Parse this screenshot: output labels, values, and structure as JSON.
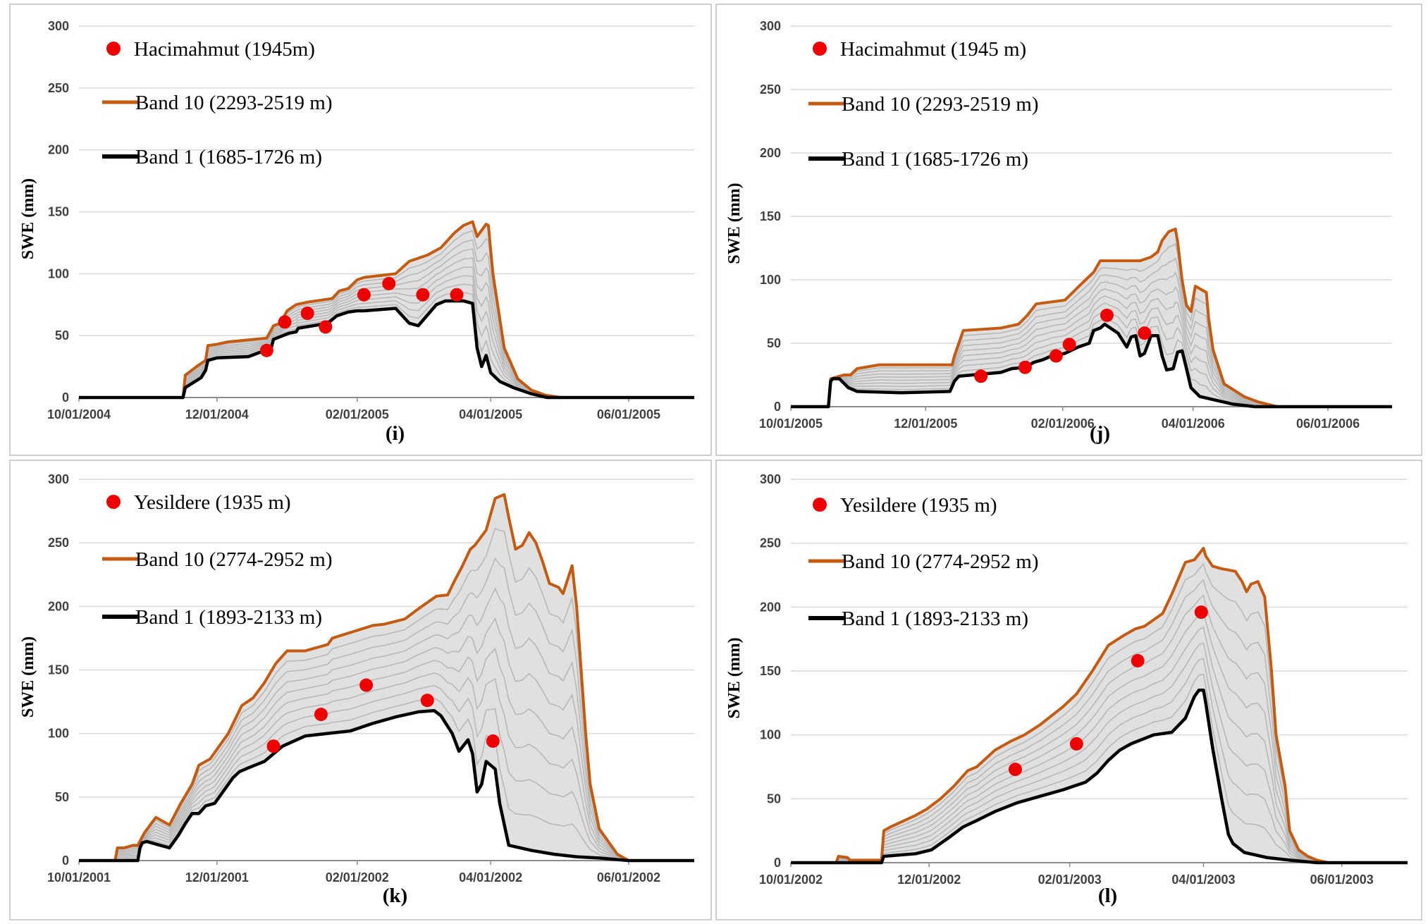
{
  "figure": {
    "ylabel": "SWE (mm)"
  },
  "colors": {
    "obs": "#ee0000",
    "band_high": "#c55a11",
    "band_low": "#000000",
    "fill": "#e0e0e0",
    "inner": "#b8b8b8",
    "grid": "#d9d9d9",
    "axis": "#8c8c8c"
  },
  "chart_data": [
    {
      "type": "area",
      "panel_label": "(i)",
      "ylabel": "SWE (mm)",
      "ylim": [
        0,
        300
      ],
      "yticks": [
        "0",
        "50",
        "100",
        "150",
        "200",
        "250",
        "300"
      ],
      "xlim_days": [
        0,
        272
      ],
      "xticks": [
        {
          "day": 0,
          "label": "10/01/2004"
        },
        {
          "day": 61,
          "label": "12/01/2004"
        },
        {
          "day": 123,
          "label": "02/01/2005"
        },
        {
          "day": 182,
          "label": "04/01/2005"
        },
        {
          "day": 243,
          "label": "06/01/2005"
        }
      ],
      "legend": [
        "Hacimahmut (1945m)",
        "Band 10 (2293-2519 m)",
        "Band 1 (1685-1726 m)"
      ],
      "observed": {
        "name": "Hacimahmut (1945m)",
        "x": [
          83,
          91,
          101,
          109,
          126,
          137,
          152,
          167
        ],
        "y": [
          38,
          61,
          68,
          57,
          83,
          92,
          83,
          83
        ]
      },
      "band10": {
        "name": "Band 10 (2293-2519 m)",
        "x": [
          0,
          46,
          47,
          52,
          56,
          57,
          61,
          66,
          83,
          86,
          89,
          92,
          96,
          101,
          112,
          115,
          119,
          123,
          126,
          140,
          146,
          154,
          160,
          166,
          170,
          174,
          176,
          180,
          181,
          183,
          188,
          194,
          200,
          206,
          213,
          272
        ],
        "y": [
          0,
          0,
          18,
          25,
          30,
          42,
          43,
          45,
          48,
          58,
          60,
          70,
          75,
          77,
          80,
          86,
          88,
          95,
          97,
          100,
          110,
          115,
          121,
          133,
          139,
          142,
          130,
          140,
          139,
          100,
          40,
          15,
          6,
          2,
          0,
          0
        ]
      },
      "band1": {
        "name": "Band 1 (1685-1726 m)",
        "x": [
          0,
          46,
          47,
          54,
          56,
          57,
          61,
          75,
          85,
          86,
          93,
          96,
          97,
          110,
          114,
          119,
          123,
          126,
          140,
          146,
          150,
          158,
          162,
          170,
          174,
          176,
          178,
          180,
          182,
          186,
          192,
          200,
          207,
          272
        ],
        "y": [
          0,
          0,
          8,
          16,
          22,
          30,
          32,
          33,
          40,
          47,
          52,
          53,
          56,
          60,
          66,
          69,
          70,
          70,
          72,
          60,
          58,
          75,
          78,
          78,
          76,
          40,
          25,
          34,
          20,
          13,
          8,
          3,
          0,
          0
        ]
      }
    },
    {
      "type": "area",
      "panel_label": "(j)",
      "ylabel": "SWE (mm)",
      "ylim": [
        0,
        300
      ],
      "yticks": [
        "0",
        "50",
        "100",
        "150",
        "200",
        "250",
        "300"
      ],
      "xlim_days": [
        0,
        272
      ],
      "xticks": [
        {
          "day": 0,
          "label": "10/01/2005"
        },
        {
          "day": 61,
          "label": "12/01/2005"
        },
        {
          "day": 123,
          "label": "02/01/2006"
        },
        {
          "day": 182,
          "label": "04/01/2006"
        },
        {
          "day": 243,
          "label": "06/01/2006"
        }
      ],
      "legend": [
        "Hacimahmut (1945 m)",
        "Band 10 (2293-2519 m)",
        "Band 1 (1685-1726 m)"
      ],
      "observed": {
        "name": "Hacimahmut (1945 m)",
        "x": [
          86,
          106,
          120,
          126,
          143,
          160
        ],
        "y": [
          24,
          31,
          40,
          49,
          72,
          58
        ]
      },
      "band10": {
        "name": "Band 10 (2293-2519 m)",
        "x": [
          0,
          17,
          18,
          24,
          27,
          30,
          40,
          50,
          73,
          74,
          76,
          78,
          95,
          103,
          107,
          111,
          124,
          131,
          137,
          140,
          158,
          163,
          166,
          168,
          171,
          174,
          175,
          177,
          179,
          181,
          183,
          188,
          189,
          191,
          196,
          205,
          211,
          220,
          272
        ],
        "y": [
          0,
          0,
          22,
          25,
          25,
          30,
          33,
          33,
          33,
          40,
          50,
          60,
          62,
          65,
          72,
          81,
          84,
          96,
          106,
          115,
          115,
          118,
          122,
          131,
          138,
          140,
          130,
          100,
          80,
          75,
          95,
          90,
          70,
          45,
          18,
          8,
          4,
          0,
          0
        ]
      },
      "band1": {
        "name": "Band 1 (1685-1726 m)",
        "x": [
          0,
          17,
          18,
          19,
          22,
          26,
          30,
          50,
          72,
          74,
          76,
          95,
          100,
          106,
          110,
          114,
          118,
          124,
          130,
          135,
          137,
          140,
          142,
          148,
          152,
          154,
          156,
          158,
          160,
          163,
          166,
          168,
          170,
          173,
          175,
          177,
          179,
          181,
          185,
          195,
          200,
          210,
          272
        ],
        "y": [
          0,
          0,
          20,
          22,
          22,
          15,
          12,
          11,
          12,
          20,
          24,
          27,
          30,
          31,
          35,
          37,
          40,
          42,
          47,
          50,
          60,
          62,
          65,
          58,
          47,
          55,
          56,
          40,
          42,
          56,
          56,
          40,
          29,
          30,
          43,
          44,
          30,
          15,
          8,
          4,
          2,
          0,
          0
        ]
      }
    },
    {
      "type": "area",
      "panel_label": "(k)",
      "ylabel": "SWE (mm)",
      "ylim": [
        0,
        300
      ],
      "yticks": [
        "0",
        "50",
        "100",
        "150",
        "200",
        "250",
        "300"
      ],
      "xlim_days": [
        0,
        272
      ],
      "xticks": [
        {
          "day": 0,
          "label": "10/01/2001"
        },
        {
          "day": 61,
          "label": "12/01/2001"
        },
        {
          "day": 123,
          "label": "02/01/2002"
        },
        {
          "day": 182,
          "label": "04/01/2002"
        },
        {
          "day": 243,
          "label": "06/01/2002"
        }
      ],
      "legend": [
        "Yesildere (1935 m)",
        "Band 10 (2774-2952 m)",
        "Band 1 (1893-2133 m)"
      ],
      "observed": {
        "name": "Yesildere (1935 m)",
        "x": [
          86,
          107,
          127,
          154,
          183
        ],
        "y": [
          90,
          115,
          138,
          126,
          94
        ]
      },
      "band10": {
        "name": "Band 10 (2774-2952 m)",
        "x": [
          0,
          16,
          17,
          20,
          24,
          26,
          29,
          34,
          38,
          40,
          45,
          50,
          53,
          58,
          66,
          72,
          77,
          82,
          87,
          92,
          100,
          110,
          112,
          130,
          135,
          144,
          150,
          158,
          163,
          166,
          169,
          173,
          175,
          180,
          184,
          188,
          190,
          193,
          196,
          199,
          202,
          205,
          208,
          212,
          214,
          218,
          220,
          222,
          224,
          226,
          230,
          238,
          243,
          272
        ],
        "y": [
          0,
          0,
          10,
          10,
          12,
          12,
          22,
          34,
          30,
          28,
          45,
          60,
          75,
          80,
          100,
          122,
          128,
          140,
          155,
          165,
          165,
          170,
          175,
          185,
          186,
          190,
          198,
          208,
          209,
          220,
          230,
          245,
          248,
          260,
          285,
          288,
          270,
          245,
          248,
          258,
          250,
          235,
          218,
          215,
          210,
          232,
          200,
          150,
          100,
          60,
          25,
          5,
          0,
          0
        ]
      },
      "band1": {
        "name": "Band 1 (1893-2133 m)",
        "x": [
          0,
          26,
          27,
          28,
          30,
          34,
          40,
          44,
          47,
          50,
          53,
          56,
          60,
          64,
          68,
          71,
          75,
          82,
          90,
          100,
          110,
          120,
          130,
          140,
          150,
          157,
          160,
          165,
          168,
          172,
          174,
          176,
          178,
          180,
          184,
          186,
          190,
          200,
          210,
          220,
          230,
          243,
          272
        ],
        "y": [
          0,
          0,
          10,
          14,
          15,
          13,
          10,
          20,
          29,
          37,
          37,
          43,
          45,
          55,
          65,
          70,
          73,
          78,
          90,
          98,
          100,
          102,
          108,
          113,
          117,
          118,
          114,
          100,
          86,
          95,
          84,
          54,
          60,
          78,
          72,
          45,
          12,
          8,
          5,
          3,
          2,
          0,
          0
        ]
      }
    },
    {
      "type": "area",
      "panel_label": "(l)",
      "ylabel": "SWE (mm)",
      "ylim": [
        0,
        300
      ],
      "yticks": [
        "0",
        "50",
        "100",
        "150",
        "200",
        "250",
        "300"
      ],
      "xlim_days": [
        0,
        272
      ],
      "xticks": [
        {
          "day": 0,
          "label": "10/01/2002"
        },
        {
          "day": 61,
          "label": "12/01/2002"
        },
        {
          "day": 123,
          "label": "02/01/2003"
        },
        {
          "day": 182,
          "label": "04/01/2003"
        },
        {
          "day": 243,
          "label": "06/01/2003"
        }
      ],
      "legend": [
        "Yesildere (1935 m)",
        "Band 10 (2774-2952 m)",
        "Band 1 (1893-2133 m)"
      ],
      "observed": {
        "name": "Yesildere (1935 m)",
        "x": [
          99,
          126,
          153,
          181
        ],
        "y": [
          73,
          93,
          158,
          196
        ]
      },
      "band10": {
        "name": "Band 10 (2774-2952 m)",
        "x": [
          0,
          20,
          21,
          25,
          26,
          40,
          41,
          44,
          55,
          60,
          66,
          72,
          78,
          82,
          90,
          97,
          103,
          110,
          120,
          126,
          133,
          140,
          147,
          152,
          156,
          164,
          168,
          174,
          178,
          182,
          183,
          186,
          190,
          196,
          199,
          201,
          203,
          206,
          209,
          212,
          214,
          218,
          220,
          224,
          228,
          232,
          237,
          272
        ],
        "y": [
          0,
          0,
          5,
          4,
          2,
          2,
          25,
          28,
          37,
          42,
          50,
          60,
          72,
          75,
          88,
          95,
          100,
          108,
          122,
          132,
          150,
          170,
          178,
          183,
          185,
          195,
          210,
          235,
          237,
          246,
          240,
          232,
          230,
          228,
          220,
          212,
          218,
          220,
          208,
          150,
          100,
          60,
          25,
          10,
          5,
          2,
          0,
          0
        ]
      },
      "band1": {
        "name": "Band 1 (1893-2133 m)",
        "x": [
          0,
          40,
          41,
          55,
          62,
          66,
          70,
          76,
          82,
          90,
          100,
          110,
          120,
          130,
          135,
          140,
          145,
          150,
          160,
          168,
          174,
          178,
          180,
          182,
          183,
          186,
          190,
          193,
          195,
          200,
          210,
          220,
          232,
          272
        ],
        "y": [
          0,
          0,
          5,
          7,
          10,
          15,
          20,
          28,
          33,
          40,
          47,
          52,
          57,
          63,
          70,
          80,
          88,
          93,
          100,
          102,
          113,
          130,
          135,
          135,
          125,
          90,
          50,
          22,
          15,
          8,
          4,
          2,
          0,
          0
        ]
      }
    }
  ]
}
